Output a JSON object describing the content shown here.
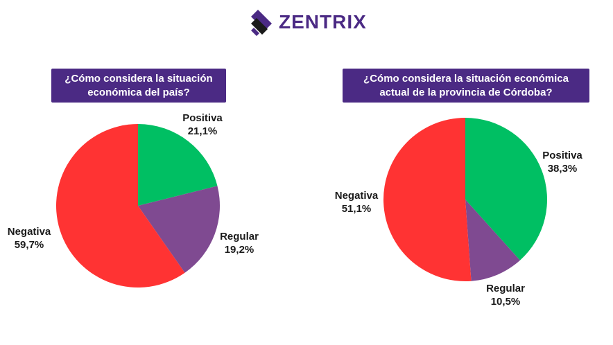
{
  "brand": {
    "name": "ZENTRIX",
    "logo_icon": "zentrix-logo-icon",
    "color": "#4b2a84"
  },
  "chart_data": [
    {
      "type": "pie",
      "title": "¿Cómo considera la situación\neconómica del país?",
      "categories": [
        "Positiva",
        "Regular",
        "Negativa"
      ],
      "values": [
        21.1,
        19.2,
        59.7
      ],
      "value_labels": [
        "21,1%",
        "19,2%",
        "59,7%"
      ],
      "colors": [
        "#00bf63",
        "#7f4a91",
        "#ff3333"
      ]
    },
    {
      "type": "pie",
      "title": "¿Cómo considera la situación económica\nactual de la provincia de Córdoba?",
      "categories": [
        "Positiva",
        "Regular",
        "Negativa"
      ],
      "values": [
        38.3,
        10.5,
        51.1
      ],
      "value_labels": [
        "38,3%",
        "10,5%",
        "51,1%"
      ],
      "colors": [
        "#00bf63",
        "#7f4a91",
        "#ff3333"
      ]
    }
  ]
}
